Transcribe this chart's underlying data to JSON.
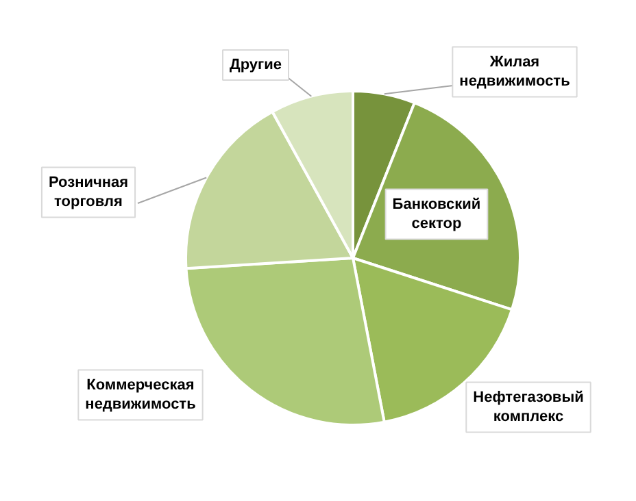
{
  "chart_data": {
    "type": "pie",
    "categories": [
      "Жилая недвижимость",
      "Банковский сектор",
      "Нефтегазовый комплекс",
      "Коммерческая недвижимость",
      "Розничная торговля",
      "Другие"
    ],
    "values": [
      6,
      24,
      17,
      27,
      18,
      8
    ],
    "colors": [
      "#77933c",
      "#8cab4e",
      "#9bbb59",
      "#adca78",
      "#c3d69b",
      "#d7e4bd"
    ]
  }
}
